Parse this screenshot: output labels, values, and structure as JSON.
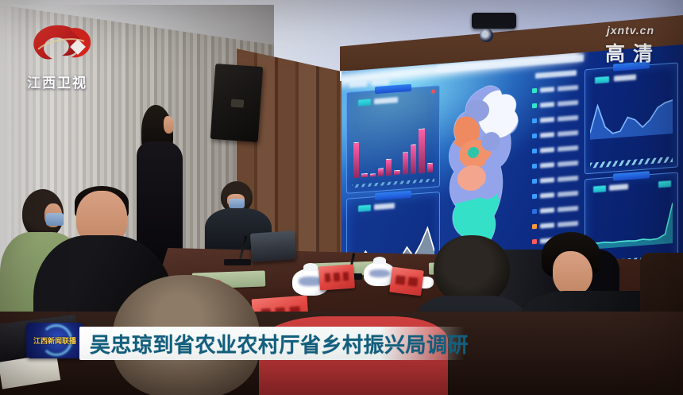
{
  "branding": {
    "channel_name": "江西卫视",
    "watermark": "jxntv.cn",
    "hd_label": "高清"
  },
  "caption": {
    "program_badge": "江西新闻联播",
    "headline": "吴忠琼到省农业农村厅省乡村振兴局调研"
  },
  "colors": {
    "headline_text": "#14617f",
    "headline_bg": "#ffffff",
    "badge_bg": "#152473",
    "badge_text": "#ffd34d",
    "screen_bg": "#123a9e",
    "panel_border": "#5fa5ff",
    "bar_color": "#ff5fa8",
    "map_region_orange": "#f2926a",
    "map_region_cyan": "#35e0c8",
    "map_region_blue": "#93a4ea",
    "map_region_white": "#f4f7ff"
  },
  "dashboard": {
    "bar_chart": {
      "type": "bar",
      "values": [
        58,
        6,
        5,
        13,
        27,
        8,
        36,
        47,
        72,
        15
      ],
      "bar_color": "#ff5fa8"
    },
    "area_chart_left": {
      "type": "area",
      "values": [
        8,
        14,
        34,
        12,
        9,
        10,
        11,
        13,
        36,
        16,
        40,
        72,
        24
      ],
      "fill": "#e9f2c6",
      "stroke": "#ffffff"
    },
    "line_chart_right_top": {
      "type": "area",
      "values": [
        14,
        68,
        24,
        10,
        13,
        40,
        34,
        18,
        32,
        55,
        64,
        68
      ],
      "fill": "#3f8cff",
      "stroke": "#7fb8ff"
    },
    "line_chart_right_bottom": {
      "type": "area",
      "values": [
        15,
        12,
        13,
        11,
        12,
        12,
        11,
        13,
        11,
        12,
        20,
        82
      ],
      "fill": "#2fd8c8",
      "stroke": "#4fe8d8"
    },
    "map_legend_colors": [
      "#2ee6c8",
      "#2ee6c8",
      "#3aa0ff",
      "#3aa0ff",
      "#3aa0ff",
      "#3aa0ff",
      "#3aa0ff",
      "#3aa0ff",
      "#2b6fe0",
      "#ff9a3c",
      "#ff5a5a"
    ]
  }
}
